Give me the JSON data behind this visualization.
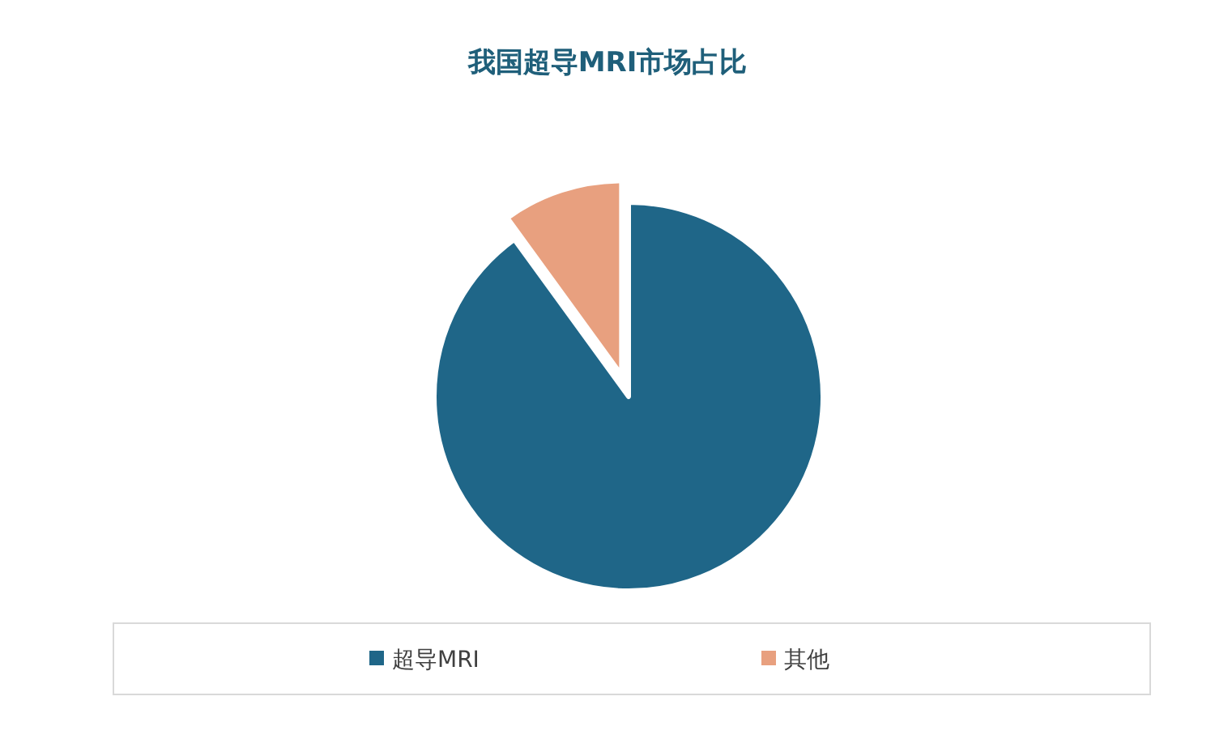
{
  "chart_data": {
    "type": "pie",
    "title": "我国超导MRI市场占比",
    "categories": [
      "超导MRI",
      "其他"
    ],
    "values": [
      90,
      10
    ],
    "colors": [
      "#1f6688",
      "#e8a07f"
    ],
    "legend": "bottom"
  }
}
